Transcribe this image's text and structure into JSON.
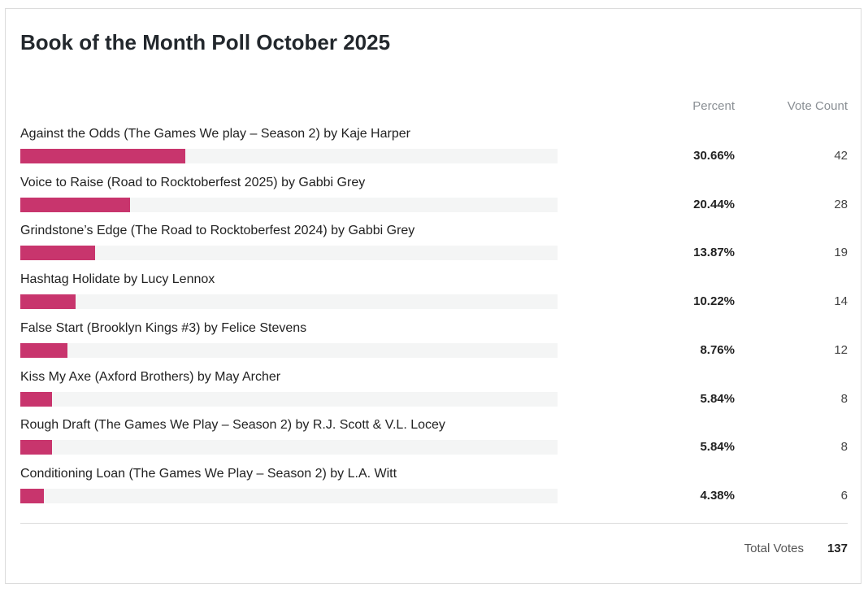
{
  "poll": {
    "title": "Book of the Month Poll October 2025",
    "column_percent": "Percent",
    "column_count": "Vote Count",
    "total_label": "Total Votes",
    "total_value": "137"
  },
  "colors": {
    "bar_fill": "#c8356d",
    "bar_track": "#f4f5f5"
  },
  "chart_data": {
    "type": "bar",
    "orientation": "horizontal",
    "title": "Book of the Month Poll October 2025",
    "xlim": [
      0,
      100
    ],
    "categories": [
      "Against the Odds (The Games We play – Season 2) by Kaje Harper",
      "Voice to Raise (Road to Rocktoberfest 2025) by Gabbi Grey",
      "Grindstone’s Edge (The Road to Rocktoberfest 2024) by Gabbi Grey",
      "Hashtag Holidate by Lucy Lennox",
      "False Start (Brooklyn Kings #3) by Felice Stevens",
      "Kiss My Axe (Axford Brothers) by May Archer",
      "Rough Draft (The Games We Play – Season 2) by R.J. Scott & V.L. Locey",
      "Conditioning Loan (The Games We Play – Season 2) by L.A. Witt"
    ],
    "percent_values": [
      30.66,
      20.44,
      13.87,
      10.22,
      8.76,
      5.84,
      5.84,
      4.38
    ],
    "percent_labels": [
      "30.66%",
      "20.44%",
      "13.87%",
      "10.22%",
      "8.76%",
      "5.84%",
      "5.84%",
      "4.38%"
    ],
    "vote_counts": [
      "42",
      "28",
      "19",
      "14",
      "12",
      "8",
      "8",
      "6"
    ]
  }
}
